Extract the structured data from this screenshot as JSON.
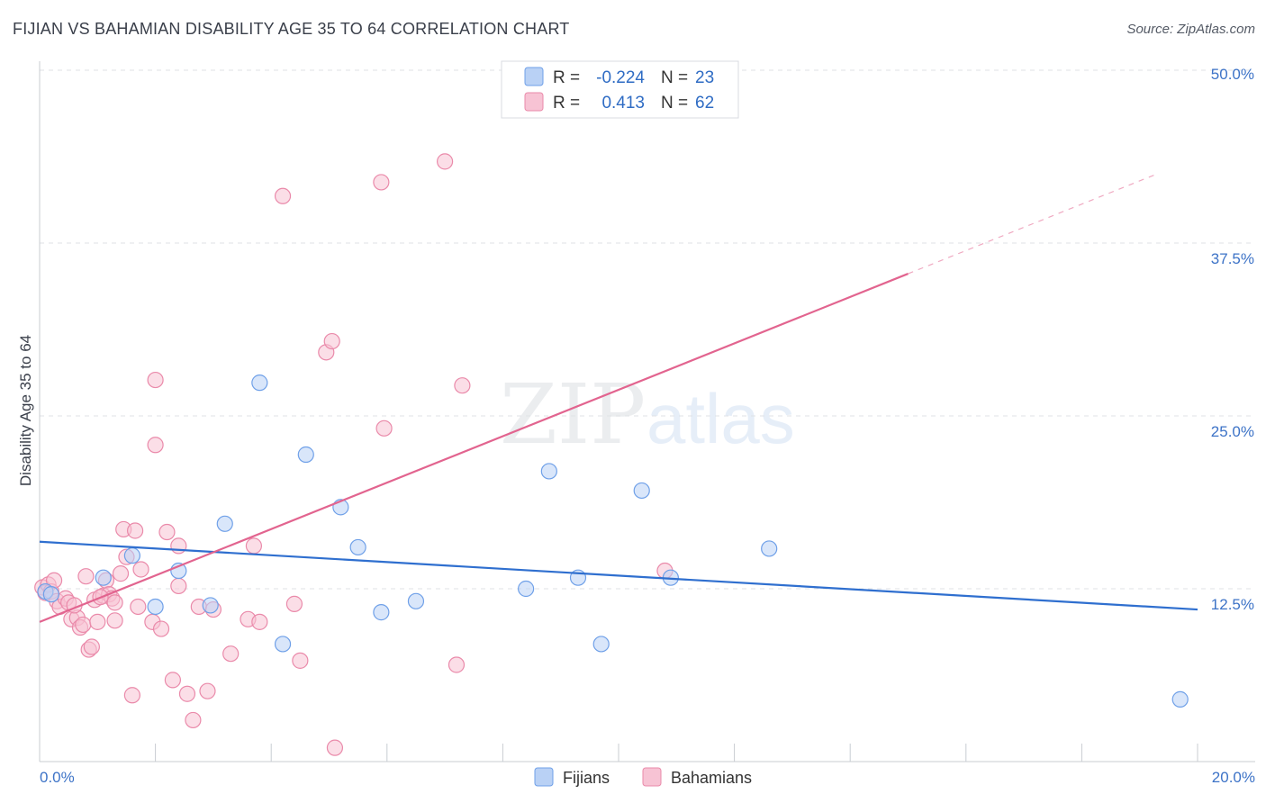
{
  "chart_data": {
    "type": "scatter",
    "title": "FIJIAN VS BAHAMIAN DISABILITY AGE 35 TO 64 CORRELATION CHART",
    "source": "Source: ZipAtlas.com",
    "ylabel": "Disability Age 35 to 64",
    "xlim": [
      0,
      20
    ],
    "ylim": [
      0,
      50
    ],
    "x_ticks": [
      "0.0%",
      "20.0%"
    ],
    "y_ticks": [
      {
        "value": 12.5,
        "label": "12.5%"
      },
      {
        "value": 25.0,
        "label": "25.0%"
      },
      {
        "value": 37.5,
        "label": "37.5%"
      },
      {
        "value": 50.0,
        "label": "50.0%"
      }
    ],
    "legend": [
      {
        "name": "Fijians",
        "r_label": "R =",
        "r": "-0.224",
        "n_label": "N =",
        "n": "23",
        "color": "#6fa0e8",
        "fill": "#b9d1f5"
      },
      {
        "name": "Bahamians",
        "r_label": "R =",
        "r": "0.413",
        "n_label": "N =",
        "n": "62",
        "color": "#ea8aaa",
        "fill": "#f7c3d4"
      }
    ],
    "series": [
      {
        "name": "Fijians",
        "points": [
          [
            0.1,
            12.3
          ],
          [
            1.1,
            13.3
          ],
          [
            1.6,
            14.9
          ],
          [
            2.0,
            11.2
          ],
          [
            2.4,
            13.8
          ],
          [
            2.95,
            11.3
          ],
          [
            3.2,
            17.2
          ],
          [
            3.8,
            27.4
          ],
          [
            4.2,
            8.5
          ],
          [
            4.6,
            22.2
          ],
          [
            5.2,
            18.4
          ],
          [
            5.5,
            15.5
          ],
          [
            5.9,
            10.8
          ],
          [
            6.5,
            11.6
          ],
          [
            8.4,
            12.5
          ],
          [
            8.8,
            21.0
          ],
          [
            9.3,
            13.3
          ],
          [
            9.7,
            8.5
          ],
          [
            10.4,
            19.6
          ],
          [
            10.9,
            13.3
          ],
          [
            12.6,
            15.4
          ],
          [
            19.7,
            4.5
          ],
          [
            0.2,
            12.1
          ]
        ],
        "trend": {
          "x": [
            0,
            20
          ],
          "y": [
            15.9,
            11.0
          ],
          "dashed_after": null,
          "color": "#2f6fcf"
        }
      },
      {
        "name": "Bahamians",
        "points": [
          [
            0.05,
            12.6
          ],
          [
            0.1,
            12.2
          ],
          [
            0.15,
            12.8
          ],
          [
            0.2,
            12.3
          ],
          [
            0.25,
            13.1
          ],
          [
            0.3,
            11.6
          ],
          [
            0.35,
            11.2
          ],
          [
            0.45,
            11.8
          ],
          [
            0.5,
            11.5
          ],
          [
            0.55,
            10.3
          ],
          [
            0.65,
            10.4
          ],
          [
            0.7,
            9.7
          ],
          [
            0.75,
            9.9
          ],
          [
            0.8,
            13.4
          ],
          [
            0.85,
            8.1
          ],
          [
            0.9,
            8.3
          ],
          [
            0.95,
            11.7
          ],
          [
            1.0,
            10.1
          ],
          [
            1.1,
            12.0
          ],
          [
            1.15,
            13.1
          ],
          [
            1.2,
            12.1
          ],
          [
            1.25,
            11.8
          ],
          [
            1.3,
            11.5
          ],
          [
            1.3,
            10.2
          ],
          [
            1.4,
            13.6
          ],
          [
            1.45,
            16.8
          ],
          [
            1.5,
            14.8
          ],
          [
            1.6,
            4.8
          ],
          [
            1.65,
            16.7
          ],
          [
            1.7,
            11.2
          ],
          [
            1.75,
            13.9
          ],
          [
            1.95,
            10.1
          ],
          [
            2.0,
            22.9
          ],
          [
            2.0,
            27.6
          ],
          [
            2.1,
            9.6
          ],
          [
            2.2,
            16.6
          ],
          [
            2.3,
            5.9
          ],
          [
            2.4,
            15.6
          ],
          [
            2.4,
            12.7
          ],
          [
            2.55,
            4.9
          ],
          [
            2.65,
            3.0
          ],
          [
            2.75,
            11.2
          ],
          [
            2.9,
            5.1
          ],
          [
            3.0,
            11.0
          ],
          [
            3.3,
            7.8
          ],
          [
            3.6,
            10.3
          ],
          [
            3.7,
            15.6
          ],
          [
            3.8,
            10.1
          ],
          [
            4.2,
            40.9
          ],
          [
            4.4,
            11.4
          ],
          [
            4.5,
            7.3
          ],
          [
            4.95,
            29.6
          ],
          [
            5.05,
            30.4
          ],
          [
            5.1,
            1.0
          ],
          [
            5.9,
            41.9
          ],
          [
            5.95,
            24.1
          ],
          [
            7.0,
            43.4
          ],
          [
            7.2,
            7.0
          ],
          [
            7.3,
            27.2
          ],
          [
            10.8,
            13.8
          ],
          [
            0.6,
            11.3
          ],
          [
            1.05,
            11.9
          ]
        ],
        "trend": {
          "x": [
            0,
            19.3
          ],
          "y": [
            10.1,
            42.5
          ],
          "dashed_after": 15.0,
          "color": "#e2648f"
        }
      }
    ],
    "bottom_legend": [
      "Fijians",
      "Bahamians"
    ],
    "watermark": "ZIPatlas"
  }
}
